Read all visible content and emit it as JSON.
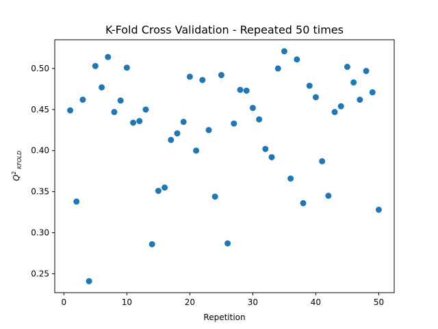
{
  "chart_data": {
    "type": "scatter",
    "title": "K-Fold Cross Validation - Repeated 50 times",
    "xlabel": "Repetition",
    "ylabel": "Q",
    "ylabel_superscript": "2",
    "ylabel_subscript": "KFOLD",
    "xlim": [
      -1.45,
      52.45
    ],
    "ylim": [
      0.227,
      0.535
    ],
    "xticks": [
      0,
      10,
      20,
      30,
      40,
      50
    ],
    "xtick_labels": [
      "0",
      "10",
      "20",
      "30",
      "40",
      "50"
    ],
    "yticks": [
      0.25,
      0.3,
      0.35,
      0.4,
      0.45,
      0.5
    ],
    "ytick_labels": [
      "0.25",
      "0.30",
      "0.35",
      "0.40",
      "0.45",
      "0.50"
    ],
    "grid": false,
    "marker_color": "#1f77b4",
    "series": [
      {
        "x": [
          1,
          2,
          3,
          4,
          5,
          6,
          7,
          8,
          9,
          10,
          11,
          12,
          13,
          14,
          15,
          16,
          17,
          18,
          19,
          20,
          21,
          22,
          23,
          24,
          25,
          26,
          27,
          28,
          29,
          30,
          31,
          32,
          33,
          34,
          35,
          36,
          37,
          38,
          39,
          40,
          41,
          42,
          43,
          44,
          45,
          46,
          47,
          48,
          49,
          50
        ],
        "values": [
          0.449,
          0.338,
          0.462,
          0.241,
          0.503,
          0.477,
          0.514,
          0.447,
          0.461,
          0.501,
          0.434,
          0.436,
          0.45,
          0.286,
          0.351,
          0.355,
          0.413,
          0.421,
          0.435,
          0.49,
          0.4,
          0.486,
          0.425,
          0.344,
          0.492,
          0.287,
          0.433,
          0.474,
          0.473,
          0.452,
          0.438,
          0.402,
          0.392,
          0.5,
          0.521,
          0.366,
          0.511,
          0.336,
          0.479,
          0.465,
          0.387,
          0.345,
          0.447,
          0.454,
          0.502,
          0.483,
          0.462,
          0.497,
          0.471,
          0.328
        ]
      }
    ]
  }
}
